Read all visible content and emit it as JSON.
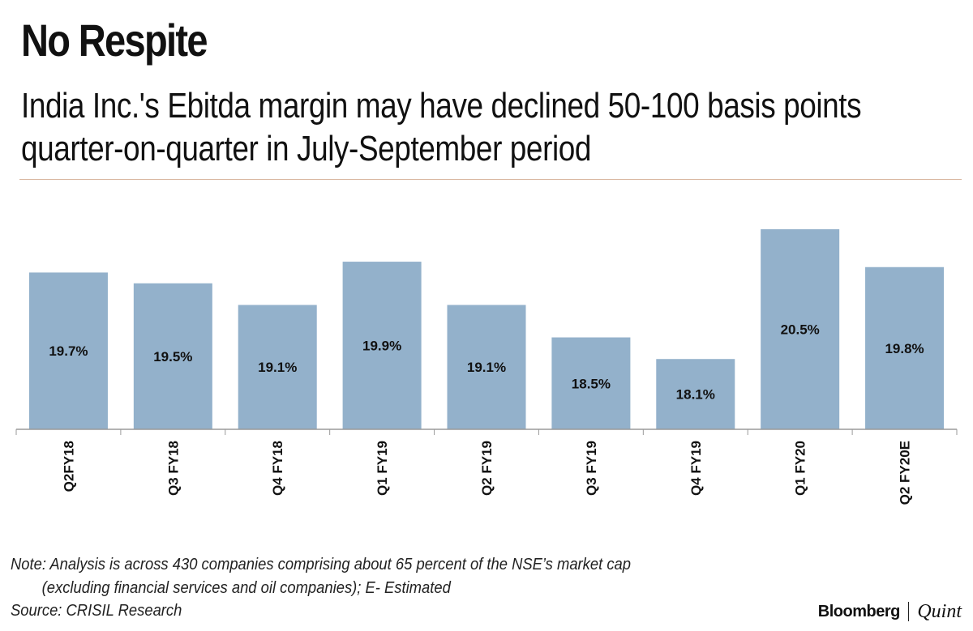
{
  "header": {
    "title": "No Respite",
    "subtitle": "India Inc.'s Ebitda margin may have declined 50-100 basis points quarter-on-quarter in July-September period"
  },
  "footer": {
    "note_line1": "Note: Analysis is across 430 companies comprising about 65 percent of the NSE’s market cap",
    "note_line2": "(excluding financial services and oil companies); E- Estimated",
    "source": "Source: CRISIL Research",
    "brand_left": "Bloomberg",
    "brand_right": "Quint"
  },
  "chart_data": {
    "type": "bar",
    "title": "No Respite",
    "subtitle": "India Inc.'s Ebitda margin may have declined 50-100 basis points quarter-on-quarter in July-September period",
    "categories": [
      "Q2FY18",
      "Q3 FY18",
      "Q4 FY18",
      "Q1 FY19",
      "Q2 FY19",
      "Q3 FY19",
      "Q4 FY19",
      "Q1 FY20",
      "Q2 FY20E"
    ],
    "values": [
      19.7,
      19.5,
      19.1,
      19.9,
      19.1,
      18.5,
      18.1,
      20.5,
      19.8
    ],
    "data_labels": [
      "19.7%",
      "19.5%",
      "19.1%",
      "19.9%",
      "19.1%",
      "18.5%",
      "18.1%",
      "20.5%",
      "19.8%"
    ],
    "unit": "%",
    "ylim": [
      16.8,
      20.8
    ],
    "grid": false,
    "legend": "none",
    "bar_color": "#93b1cb"
  }
}
